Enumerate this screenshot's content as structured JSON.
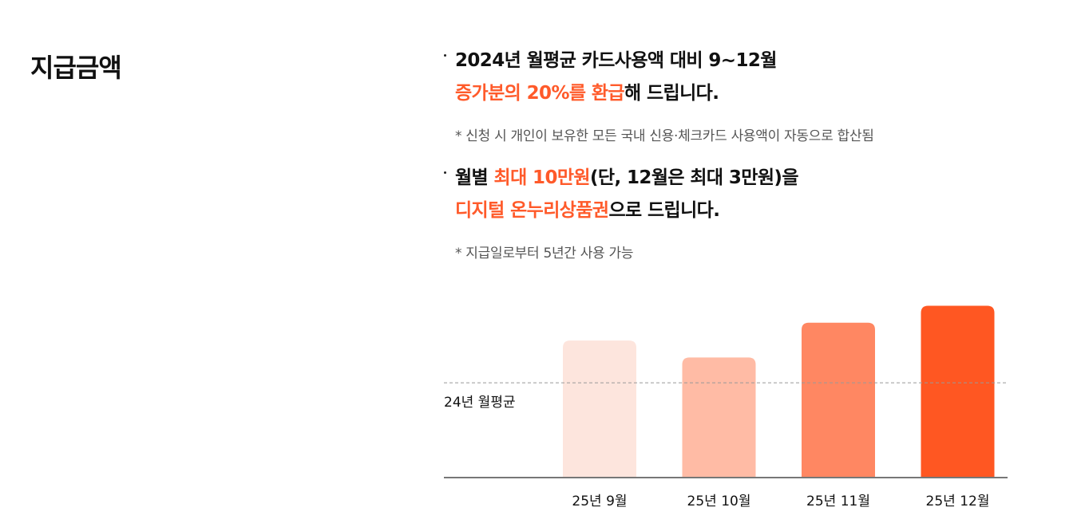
{
  "section_title": "지급금액",
  "points": [
    {
      "line1": [
        {
          "text": "2024년 월평균 카드사용액 대비 9~12월",
          "hl": false
        }
      ],
      "line2": [
        {
          "text": "증가분의 20%를 환급",
          "hl": true
        },
        {
          "text": "해 드립니다.",
          "hl": false
        }
      ],
      "note": "* 신청 시 개인이 보유한 모든 국내 신용·체크카드 사용액이 자동으로 합산됨"
    },
    {
      "line1": [
        {
          "text": "월별 ",
          "hl": false
        },
        {
          "text": "최대 10만원",
          "hl": true
        },
        {
          "text": "(단, 12월은 최대 3만원)을",
          "hl": false
        }
      ],
      "line2": [
        {
          "text": "디지털 온누리상품권",
          "hl": true
        },
        {
          "text": "으로 드립니다.",
          "hl": false
        }
      ],
      "note": "* 지급일로부터 5년간 사용 가능"
    }
  ],
  "colors": {
    "accent": "#ff5a2a",
    "bars": [
      "#fde5dd",
      "#ffbba5",
      "#ff8762",
      "#ff5722"
    ],
    "reference_line": "#999999",
    "baseline": "#777777"
  },
  "chart_data": {
    "type": "bar",
    "categories": [
      "25년 9월",
      "25년 10월",
      "25년 11월",
      "25년 12월"
    ],
    "values": [
      1.45,
      1.27,
      1.64,
      1.82
    ],
    "ylim": [
      0,
      1.85
    ],
    "reference_line": {
      "label": "24년 월평균",
      "value": 1.0
    },
    "title": "",
    "xlabel": "",
    "ylabel": "",
    "grid": false,
    "legend": "none"
  }
}
